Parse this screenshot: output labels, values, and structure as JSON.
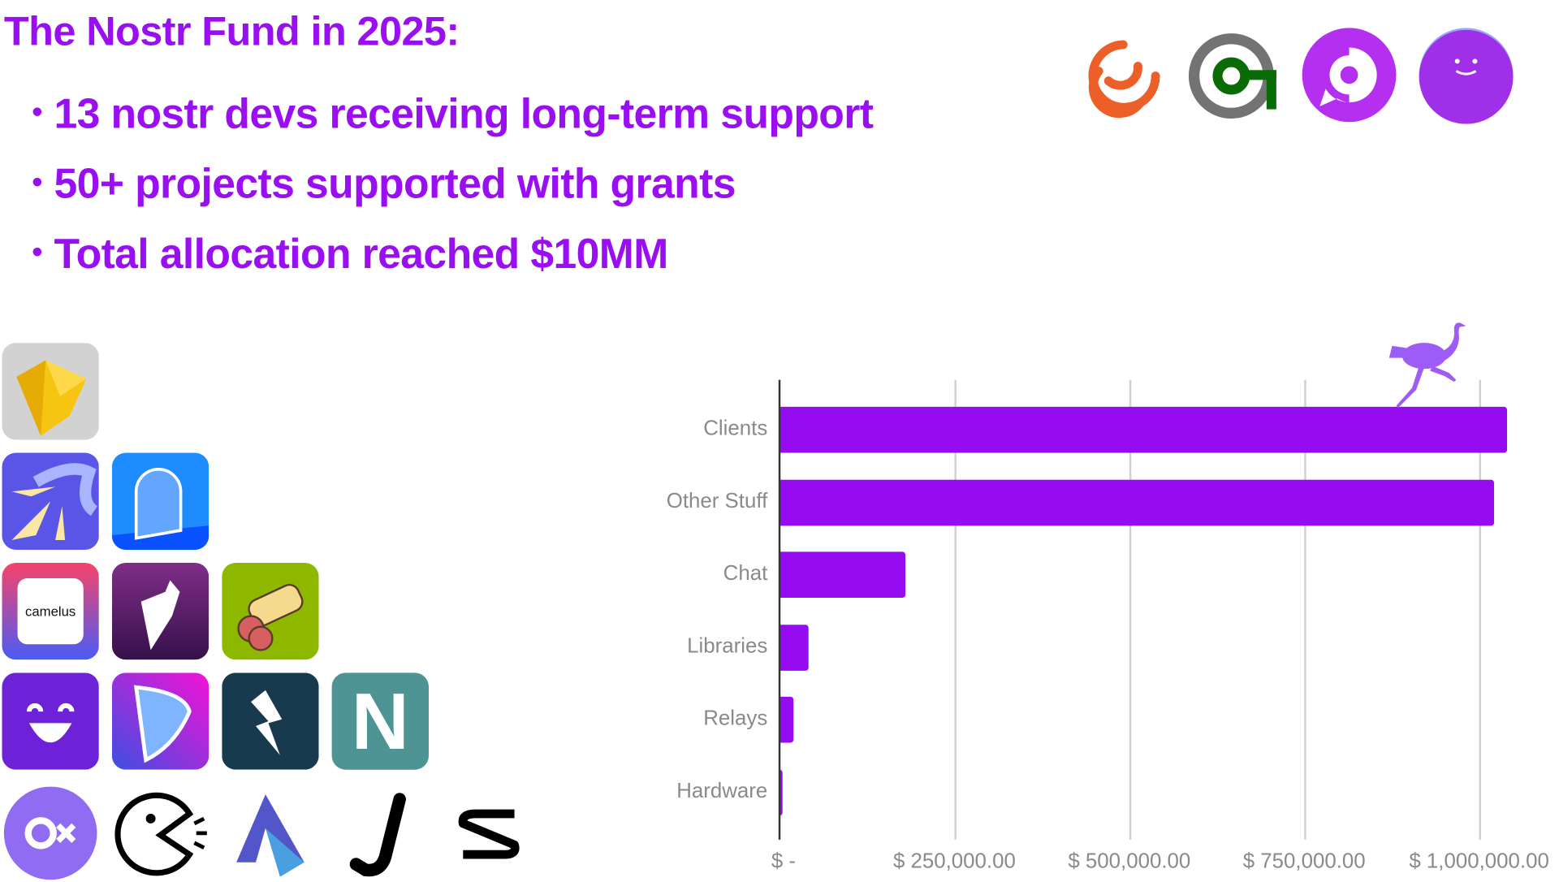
{
  "heading": {
    "title": "The Nostr Fund in 2025:",
    "bullets": [
      "13 nostr devs receiving long-term support",
      "50+ projects supported with grants",
      "Total allocation reached $10MM"
    ],
    "bullet_glyph": "•",
    "accent_color": "#9a0ff2"
  },
  "logos_top": [
    "swirl-logo-icon",
    "green-key-logo-icon",
    "purple-chat-logo-icon",
    "smiley-face-logo-icon"
  ],
  "app_icons": {
    "camelus_label": "camelus",
    "n_letter": "N",
    "items": [
      "diamond-app-icon",
      "lightning-bolts-app-icon",
      "doorway-app-icon",
      "camelus-app-icon",
      "origami-bird-app-icon",
      "bread-roll-app-icon",
      "smile-app-icon",
      "geodesic-shield-app-icon",
      "zap-bolt-app-icon",
      "n-app-icon",
      "ox-app-icon",
      "pacman-app-icon",
      "bird-a-app-icon",
      "j-app-icon",
      "s-app-icon"
    ]
  },
  "chart_data": {
    "type": "bar",
    "orientation": "horizontal",
    "categories": [
      "Clients",
      "Other Stuff",
      "Chat",
      "Libraries",
      "Relays",
      "Hardware"
    ],
    "values": [
      1040000,
      1022000,
      180000,
      41000,
      20000,
      4000
    ],
    "xlim": [
      0,
      1000000
    ],
    "xticks": [
      0,
      250000,
      500000,
      750000,
      1000000
    ],
    "xtick_labels": [
      "$ -",
      "$ 250,000.00",
      "$ 500,000.00",
      "$ 750,000.00",
      "$ 1,000,000.00"
    ],
    "grid": "vertical",
    "bar_color": "#950cf0",
    "decoration": "ostrich-icon"
  }
}
